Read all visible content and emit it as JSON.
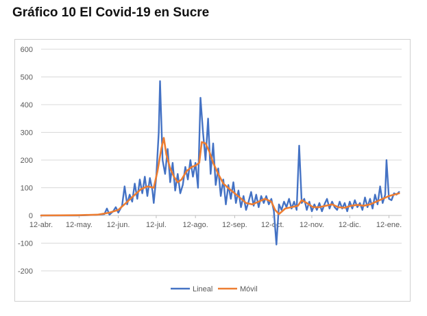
{
  "header": {
    "title": "Gráfico 10 El Covid-19 en Sucre"
  },
  "chart_data": {
    "type": "line",
    "title": "Gráfico 10 El Covid-19 en Sucre",
    "xlabel": "",
    "ylabel": "",
    "ylim": [
      -200,
      600
    ],
    "yticks": [
      -200,
      -100,
      0,
      100,
      200,
      300,
      400,
      500,
      600
    ],
    "xlim": [
      "2020-04-12",
      "2021-01-22"
    ],
    "xtick_labels": [
      "12-abr.",
      "12-may.",
      "12-jun.",
      "12-jul.",
      "12-ago.",
      "12-sep.",
      "12-oct.",
      "12-nov.",
      "12-dic.",
      "12-ene."
    ],
    "xtick_dates": [
      "2020-04-12",
      "2020-05-12",
      "2020-06-12",
      "2020-07-12",
      "2020-08-12",
      "2020-09-12",
      "2020-10-12",
      "2020-11-12",
      "2020-12-12",
      "2021-01-12"
    ],
    "grid": {
      "horizontal": true,
      "vertical": false
    },
    "legend": "bottom",
    "series": [
      {
        "name": "Lineal",
        "color": "#4472c4",
        "points": [
          [
            "2020-04-12",
            0
          ],
          [
            "2020-05-10",
            0
          ],
          [
            "2020-05-25",
            2
          ],
          [
            "2020-06-01",
            5
          ],
          [
            "2020-06-03",
            25
          ],
          [
            "2020-06-05",
            3
          ],
          [
            "2020-06-08",
            15
          ],
          [
            "2020-06-10",
            30
          ],
          [
            "2020-06-12",
            10
          ],
          [
            "2020-06-15",
            35
          ],
          [
            "2020-06-17",
            105
          ],
          [
            "2020-06-19",
            40
          ],
          [
            "2020-06-21",
            75
          ],
          [
            "2020-06-23",
            50
          ],
          [
            "2020-06-25",
            115
          ],
          [
            "2020-06-27",
            60
          ],
          [
            "2020-06-29",
            130
          ],
          [
            "2020-07-01",
            80
          ],
          [
            "2020-07-03",
            140
          ],
          [
            "2020-07-05",
            70
          ],
          [
            "2020-07-07",
            135
          ],
          [
            "2020-07-09",
            90
          ],
          [
            "2020-07-10",
            45
          ],
          [
            "2020-07-12",
            140
          ],
          [
            "2020-07-14",
            300
          ],
          [
            "2020-07-15",
            485
          ],
          [
            "2020-07-17",
            200
          ],
          [
            "2020-07-19",
            150
          ],
          [
            "2020-07-21",
            240
          ],
          [
            "2020-07-23",
            120
          ],
          [
            "2020-07-25",
            190
          ],
          [
            "2020-07-27",
            90
          ],
          [
            "2020-07-29",
            150
          ],
          [
            "2020-07-31",
            80
          ],
          [
            "2020-08-02",
            110
          ],
          [
            "2020-08-04",
            175
          ],
          [
            "2020-08-06",
            130
          ],
          [
            "2020-08-08",
            200
          ],
          [
            "2020-08-10",
            140
          ],
          [
            "2020-08-12",
            190
          ],
          [
            "2020-08-14",
            100
          ],
          [
            "2020-08-16",
            425
          ],
          [
            "2020-08-18",
            300
          ],
          [
            "2020-08-20",
            200
          ],
          [
            "2020-08-22",
            350
          ],
          [
            "2020-08-24",
            150
          ],
          [
            "2020-08-26",
            260
          ],
          [
            "2020-08-28",
            110
          ],
          [
            "2020-08-30",
            170
          ],
          [
            "2020-09-01",
            70
          ],
          [
            "2020-09-03",
            130
          ],
          [
            "2020-09-05",
            40
          ],
          [
            "2020-09-07",
            110
          ],
          [
            "2020-09-09",
            60
          ],
          [
            "2020-09-11",
            120
          ],
          [
            "2020-09-13",
            45
          ],
          [
            "2020-09-15",
            90
          ],
          [
            "2020-09-17",
            30
          ],
          [
            "2020-09-19",
            70
          ],
          [
            "2020-09-21",
            20
          ],
          [
            "2020-09-23",
            50
          ],
          [
            "2020-09-25",
            85
          ],
          [
            "2020-09-27",
            35
          ],
          [
            "2020-09-29",
            75
          ],
          [
            "2020-10-01",
            30
          ],
          [
            "2020-10-03",
            70
          ],
          [
            "2020-10-05",
            45
          ],
          [
            "2020-10-07",
            70
          ],
          [
            "2020-10-09",
            40
          ],
          [
            "2020-10-11",
            60
          ],
          [
            "2020-10-13",
            15
          ],
          [
            "2020-10-15",
            -105
          ],
          [
            "2020-10-17",
            40
          ],
          [
            "2020-10-19",
            20
          ],
          [
            "2020-10-21",
            50
          ],
          [
            "2020-10-23",
            30
          ],
          [
            "2020-10-25",
            60
          ],
          [
            "2020-10-27",
            25
          ],
          [
            "2020-10-29",
            50
          ],
          [
            "2020-10-31",
            20
          ],
          [
            "2020-11-02",
            252
          ],
          [
            "2020-11-04",
            45
          ],
          [
            "2020-11-06",
            60
          ],
          [
            "2020-11-08",
            20
          ],
          [
            "2020-11-10",
            50
          ],
          [
            "2020-11-12",
            15
          ],
          [
            "2020-11-14",
            40
          ],
          [
            "2020-11-16",
            20
          ],
          [
            "2020-11-18",
            45
          ],
          [
            "2020-11-20",
            15
          ],
          [
            "2020-11-22",
            40
          ],
          [
            "2020-11-24",
            60
          ],
          [
            "2020-11-26",
            25
          ],
          [
            "2020-11-28",
            50
          ],
          [
            "2020-11-30",
            30
          ],
          [
            "2020-12-02",
            20
          ],
          [
            "2020-12-04",
            50
          ],
          [
            "2020-12-06",
            25
          ],
          [
            "2020-12-08",
            45
          ],
          [
            "2020-12-10",
            15
          ],
          [
            "2020-12-12",
            50
          ],
          [
            "2020-12-14",
            25
          ],
          [
            "2020-12-16",
            55
          ],
          [
            "2020-12-18",
            30
          ],
          [
            "2020-12-20",
            45
          ],
          [
            "2020-12-22",
            20
          ],
          [
            "2020-12-24",
            65
          ],
          [
            "2020-12-26",
            30
          ],
          [
            "2020-12-28",
            60
          ],
          [
            "2020-12-30",
            25
          ],
          [
            "2021-01-01",
            75
          ],
          [
            "2021-01-03",
            40
          ],
          [
            "2021-01-05",
            105
          ],
          [
            "2021-01-07",
            45
          ],
          [
            "2021-01-09",
            75
          ],
          [
            "2021-01-10",
            200
          ],
          [
            "2021-01-12",
            60
          ],
          [
            "2021-01-14",
            55
          ],
          [
            "2021-01-16",
            80
          ],
          [
            "2021-01-18",
            75
          ],
          [
            "2021-01-20",
            85
          ]
        ]
      },
      {
        "name": "Móvil",
        "color": "#ed7d31",
        "points": [
          [
            "2020-04-12",
            0
          ],
          [
            "2020-05-12",
            1
          ],
          [
            "2020-05-27",
            3
          ],
          [
            "2020-06-05",
            10
          ],
          [
            "2020-06-12",
            20
          ],
          [
            "2020-06-18",
            45
          ],
          [
            "2020-06-24",
            70
          ],
          [
            "2020-06-30",
            95
          ],
          [
            "2020-07-05",
            105
          ],
          [
            "2020-07-10",
            100
          ],
          [
            "2020-07-13",
            160
          ],
          [
            "2020-07-16",
            240
          ],
          [
            "2020-07-18",
            280
          ],
          [
            "2020-07-20",
            220
          ],
          [
            "2020-07-23",
            170
          ],
          [
            "2020-07-26",
            140
          ],
          [
            "2020-07-29",
            120
          ],
          [
            "2020-08-01",
            130
          ],
          [
            "2020-08-05",
            160
          ],
          [
            "2020-08-09",
            175
          ],
          [
            "2020-08-12",
            180
          ],
          [
            "2020-08-15",
            190
          ],
          [
            "2020-08-17",
            265
          ],
          [
            "2020-08-20",
            260
          ],
          [
            "2020-08-23",
            230
          ],
          [
            "2020-08-26",
            190
          ],
          [
            "2020-08-30",
            150
          ],
          [
            "2020-09-03",
            115
          ],
          [
            "2020-09-08",
            95
          ],
          [
            "2020-09-12",
            80
          ],
          [
            "2020-09-16",
            65
          ],
          [
            "2020-09-21",
            45
          ],
          [
            "2020-09-26",
            40
          ],
          [
            "2020-10-01",
            50
          ],
          [
            "2020-10-06",
            60
          ],
          [
            "2020-10-11",
            50
          ],
          [
            "2020-10-14",
            20
          ],
          [
            "2020-10-17",
            5
          ],
          [
            "2020-10-22",
            25
          ],
          [
            "2020-10-27",
            30
          ],
          [
            "2020-11-01",
            35
          ],
          [
            "2020-11-04",
            55
          ],
          [
            "2020-11-08",
            45
          ],
          [
            "2020-11-13",
            30
          ],
          [
            "2020-11-18",
            30
          ],
          [
            "2020-11-23",
            35
          ],
          [
            "2020-11-28",
            40
          ],
          [
            "2020-12-03",
            30
          ],
          [
            "2020-12-08",
            28
          ],
          [
            "2020-12-13",
            35
          ],
          [
            "2020-12-18",
            38
          ],
          [
            "2020-12-23",
            35
          ],
          [
            "2020-12-28",
            40
          ],
          [
            "2021-01-02",
            50
          ],
          [
            "2021-01-07",
            60
          ],
          [
            "2021-01-12",
            70
          ],
          [
            "2021-01-16",
            75
          ],
          [
            "2021-01-20",
            80
          ]
        ]
      }
    ]
  }
}
